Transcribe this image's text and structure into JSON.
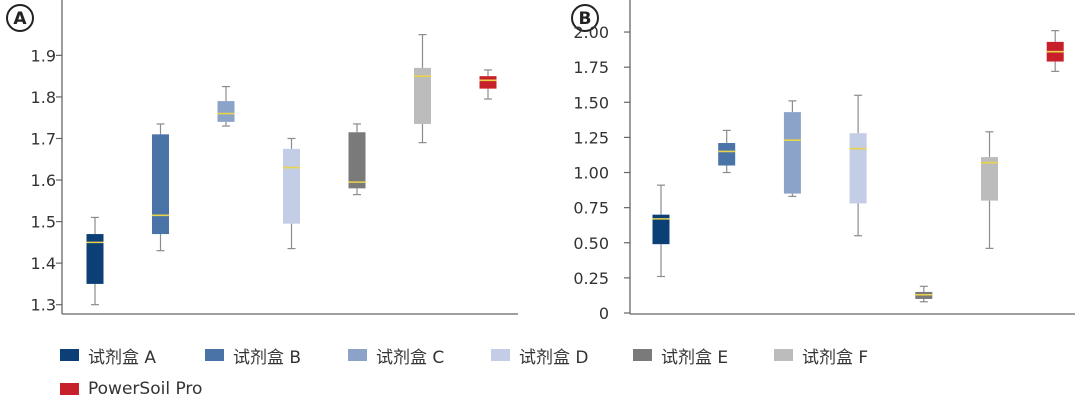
{
  "chart_data": [
    {
      "panel": "A",
      "type": "boxplot",
      "ylim": [
        1.28,
        1.99
      ],
      "yticks": [
        "1.3",
        "1.4",
        "1.5",
        "1.6",
        "1.7",
        "1.8",
        "1.9"
      ],
      "ytick_values": [
        1.3,
        1.4,
        1.5,
        1.6,
        1.7,
        1.8,
        1.9
      ],
      "series": [
        {
          "name": "试剂盒 A",
          "min": 1.3,
          "q1": 1.35,
          "median": 1.45,
          "q3": 1.47,
          "max": 1.51
        },
        {
          "name": "试剂盒 B",
          "min": 1.43,
          "q1": 1.47,
          "median": 1.515,
          "q3": 1.71,
          "max": 1.735
        },
        {
          "name": "试剂盒 C",
          "min": 1.73,
          "q1": 1.74,
          "median": 1.76,
          "q3": 1.79,
          "max": 1.825
        },
        {
          "name": "试剂盒 D",
          "min": 1.435,
          "q1": 1.495,
          "median": 1.63,
          "q3": 1.675,
          "max": 1.7
        },
        {
          "name": "试剂盒 E",
          "min": 1.565,
          "q1": 1.58,
          "median": 1.595,
          "q3": 1.715,
          "max": 1.735
        },
        {
          "name": "试剂盒 F",
          "min": 1.69,
          "q1": 1.735,
          "median": 1.85,
          "q3": 1.87,
          "max": 1.95
        },
        {
          "name": "PowerSoil Pro",
          "min": 1.795,
          "q1": 1.82,
          "median": 1.84,
          "q3": 1.85,
          "max": 1.865
        }
      ]
    },
    {
      "panel": "B",
      "type": "boxplot",
      "ylim": [
        0,
        2.1
      ],
      "yticks": [
        "0",
        "0.25",
        "0.50",
        "0.75",
        "1.00",
        "1.25",
        "1.50",
        "1.75",
        "2.00"
      ],
      "ytick_values": [
        0,
        0.25,
        0.5,
        0.75,
        1.0,
        1.25,
        1.5,
        1.75,
        2.0
      ],
      "series": [
        {
          "name": "试剂盒 A",
          "min": 0.26,
          "q1": 0.49,
          "median": 0.67,
          "q3": 0.7,
          "max": 0.91
        },
        {
          "name": "试剂盒 B",
          "min": 1.0,
          "q1": 1.05,
          "median": 1.15,
          "q3": 1.21,
          "max": 1.3
        },
        {
          "name": "试剂盒 C",
          "min": 0.83,
          "q1": 0.85,
          "median": 1.23,
          "q3": 1.43,
          "max": 1.51
        },
        {
          "name": "试剂盒 D",
          "min": 0.55,
          "q1": 0.78,
          "median": 1.17,
          "q3": 1.28,
          "max": 1.55
        },
        {
          "name": "试剂盒 E",
          "min": 0.08,
          "q1": 0.1,
          "median": 0.13,
          "q3": 0.15,
          "max": 0.19
        },
        {
          "name": "试剂盒 F",
          "min": 0.46,
          "q1": 0.8,
          "median": 1.07,
          "q3": 1.11,
          "max": 1.29
        },
        {
          "name": "PowerSoil Pro",
          "min": 1.72,
          "q1": 1.79,
          "median": 1.86,
          "q3": 1.93,
          "max": 2.01
        }
      ]
    }
  ],
  "colors": {
    "试剂盒 A": "#0d3f77",
    "试剂盒 B": "#4a73a8",
    "试剂盒 C": "#8ba2c9",
    "试剂盒 D": "#c3cde5",
    "试剂盒 E": "#7a7a7a",
    "试剂盒 F": "#bcbcbc",
    "PowerSoil Pro": "#c8202a",
    "median_line": "#e8d44a",
    "whisker": "#8c8c8c",
    "axis": "#666666"
  },
  "legend": [
    {
      "label": "试剂盒 A"
    },
    {
      "label": "试剂盒 B"
    },
    {
      "label": "试剂盒 C"
    },
    {
      "label": "试剂盒 D"
    },
    {
      "label": "试剂盒 E"
    },
    {
      "label": "试剂盒 F"
    },
    {
      "label": "PowerSoil Pro"
    }
  ]
}
